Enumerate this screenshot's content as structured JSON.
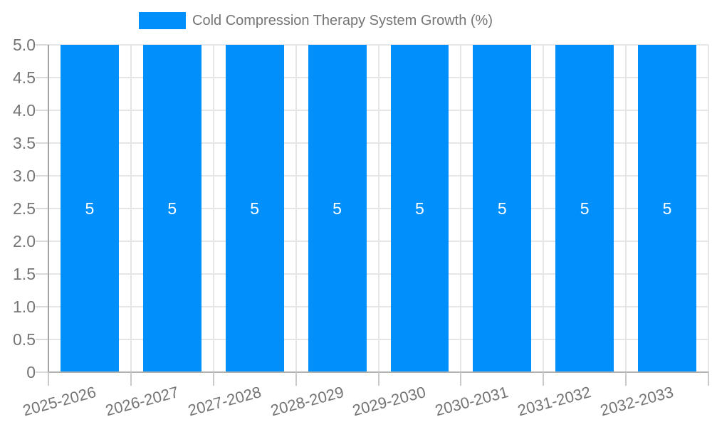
{
  "legend": {
    "label": "Cold Compression Therapy System Growth (%)"
  },
  "chart_data": {
    "type": "bar",
    "title": "Cold Compression Therapy System Growth (%)",
    "xlabel": "",
    "ylabel": "",
    "categories": [
      "2025-2026",
      "2026-2027",
      "2027-2028",
      "2028-2029",
      "2029-2030",
      "2030-2031",
      "2031-2032",
      "2032-2033"
    ],
    "series": [
      {
        "name": "Cold Compression Therapy System Growth (%)",
        "values": [
          5,
          5,
          5,
          5,
          5,
          5,
          5,
          5
        ]
      }
    ],
    "bar_labels": [
      "5",
      "5",
      "5",
      "5",
      "5",
      "5",
      "5",
      "5"
    ],
    "ylim": [
      0,
      5
    ],
    "yticks": [
      {
        "v": 5,
        "label": "5.0"
      },
      {
        "v": 4.5,
        "label": "4.5"
      },
      {
        "v": 4,
        "label": "4.0"
      },
      {
        "v": 3.5,
        "label": "3.5"
      },
      {
        "v": 3,
        "label": "3.0"
      },
      {
        "v": 2.5,
        "label": "2.5"
      },
      {
        "v": 2,
        "label": "2.0"
      },
      {
        "v": 1.5,
        "label": "1.5"
      },
      {
        "v": 1,
        "label": "1.0"
      },
      {
        "v": 0.5,
        "label": "0.5"
      },
      {
        "v": 0,
        "label": "0"
      }
    ],
    "grid": true,
    "legend_position": "top",
    "colors": {
      "bar": "#008FFB",
      "bar_label": "#FFFFFF",
      "axis_text": "#757575",
      "grid_line": "#E6E6E6",
      "axis_line": "#A3A3A3"
    }
  }
}
